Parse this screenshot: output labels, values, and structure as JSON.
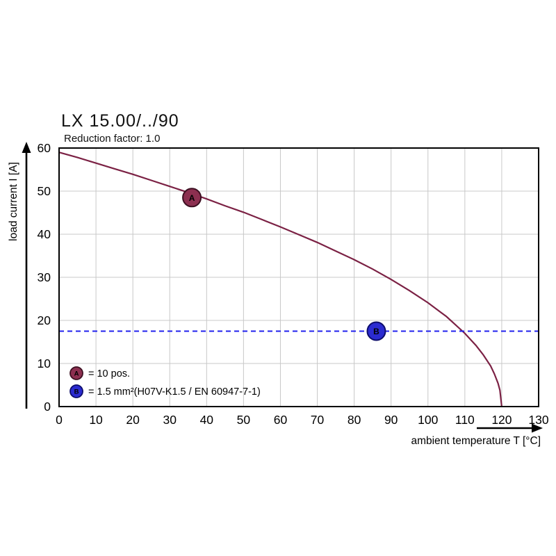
{
  "chart_data": {
    "type": "line",
    "title": "LX 15.00/../90",
    "subtitle": "Reduction factor: 1.0",
    "xlabel": "ambient temperature T [°C]",
    "ylabel": "load current I [A]",
    "xlim": [
      0,
      130
    ],
    "ylim": [
      0,
      60
    ],
    "x_ticks": [
      0,
      10,
      20,
      30,
      40,
      50,
      60,
      70,
      80,
      90,
      100,
      110,
      120,
      130
    ],
    "y_ticks": [
      0,
      10,
      20,
      30,
      40,
      50,
      60
    ],
    "grid": true,
    "grid_color": "#c8c8c8",
    "frame_color": "#000000",
    "series": [
      {
        "name": "derating-curve",
        "kind": "curve",
        "color": "#7b2144",
        "points": [
          [
            0,
            59
          ],
          [
            5,
            57.8
          ],
          [
            10,
            56.5
          ],
          [
            15,
            55.2
          ],
          [
            20,
            53.9
          ],
          [
            25,
            52.5
          ],
          [
            30,
            51.1
          ],
          [
            35,
            49.7
          ],
          [
            40,
            48.2
          ],
          [
            45,
            46.6
          ],
          [
            50,
            45.1
          ],
          [
            55,
            43.4
          ],
          [
            60,
            41.7
          ],
          [
            65,
            39.9
          ],
          [
            70,
            38.1
          ],
          [
            75,
            36.1
          ],
          [
            80,
            34.1
          ],
          [
            85,
            31.9
          ],
          [
            90,
            29.5
          ],
          [
            95,
            26.9
          ],
          [
            100,
            24.1
          ],
          [
            105,
            20.9
          ],
          [
            110,
            17.0
          ],
          [
            113,
            14.2
          ],
          [
            115,
            12.0
          ],
          [
            117,
            9.4
          ],
          [
            118,
            7.6
          ],
          [
            119,
            5.4
          ],
          [
            119.5,
            3.8
          ],
          [
            120,
            0
          ]
        ]
      },
      {
        "name": "current-limit-line",
        "kind": "hline",
        "style": "dashed",
        "color": "#2020ee",
        "y": 17.5
      }
    ],
    "markers": [
      {
        "label": "A",
        "x": 36,
        "y": 48.5,
        "fill": "#8c2f50",
        "stroke": "#3d1022"
      },
      {
        "label": "B",
        "x": 86,
        "y": 17.5,
        "fill": "#2b2bd0",
        "stroke": "#0d0d6b"
      }
    ],
    "legend": {
      "position": "bottom-left-inside",
      "items": [
        {
          "label": "A",
          "fill": "#8c2f50",
          "stroke": "#3d1022",
          "text": "= 10 pos."
        },
        {
          "label": "B",
          "fill": "#2b2bd0",
          "stroke": "#0d0d6b",
          "text": "= 1.5 mm²(H07V-K1.5 / EN 60947-7-1)"
        }
      ]
    }
  }
}
